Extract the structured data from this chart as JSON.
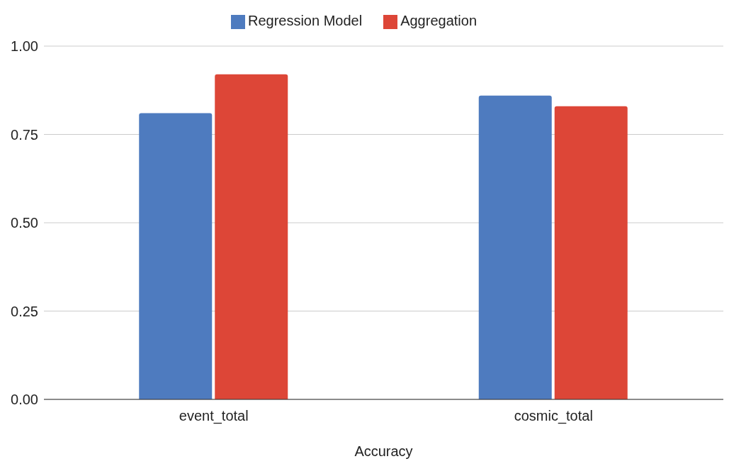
{
  "chart_data": {
    "type": "bar",
    "xlabel": "Accuracy",
    "categories": [
      "event_total",
      "cosmic_total"
    ],
    "series": [
      {
        "name": "Regression Model",
        "color": "#4e7bbf",
        "values": [
          0.81,
          0.86
        ]
      },
      {
        "name": "Aggregation",
        "color": "#dd4637",
        "values": [
          0.92,
          0.83
        ]
      }
    ],
    "ylim": [
      0,
      1
    ],
    "yticks": [
      {
        "value": 0,
        "label": "0.00"
      },
      {
        "value": 0.25,
        "label": "0.25"
      },
      {
        "value": 0.5,
        "label": "0.50"
      },
      {
        "value": 0.75,
        "label": "0.75"
      },
      {
        "value": 1,
        "label": "1.00"
      }
    ],
    "grid": "y",
    "legend": "top"
  }
}
